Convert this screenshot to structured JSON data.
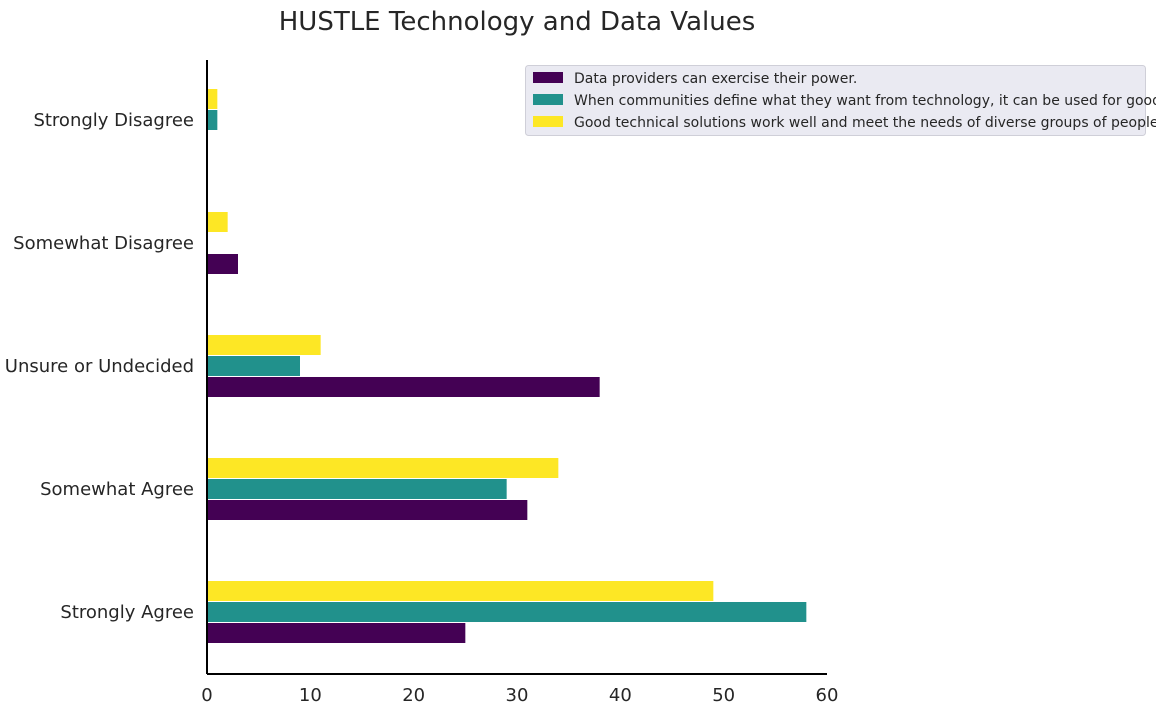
{
  "chart_data": {
    "type": "bar",
    "orientation": "horizontal",
    "title": "HUSTLE Technology and Data Values",
    "xlabel": "",
    "ylabel": "",
    "categories": [
      "Strongly Agree",
      "Somewhat Agree",
      "Unsure or Undecided",
      "Somewhat Disagree",
      "Strongly Disagree"
    ],
    "series": [
      {
        "name": "Data providers can exercise their power.",
        "color": "#440154",
        "values": [
          25,
          31,
          38,
          3,
          0
        ]
      },
      {
        "name": "When communities define what they want from technology, it can be used for good.",
        "color": "#21918c",
        "values": [
          58,
          29,
          9,
          0,
          1
        ]
      },
      {
        "name": "Good technical solutions work well and meet the needs of diverse groups of people.",
        "color": "#fde725",
        "values": [
          49,
          34,
          11,
          2,
          1
        ]
      }
    ],
    "xlim": [
      0,
      60
    ],
    "xticks": [
      0,
      10,
      20,
      30,
      40,
      50,
      60
    ],
    "grid": false,
    "legend_position": "top-right"
  }
}
